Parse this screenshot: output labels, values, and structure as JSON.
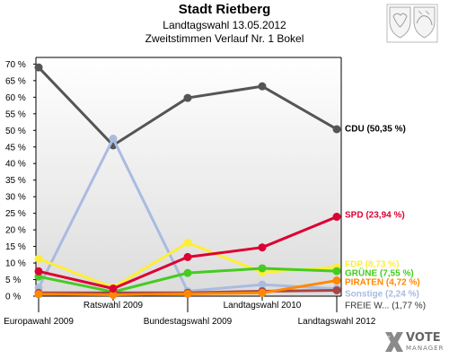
{
  "header": {
    "title": "Stadt Rietberg",
    "subtitle": "Landtagswahl 13.05.2012",
    "subtitle2": "Zweitstimmen Verlauf Nr. 1 Bokel"
  },
  "logo": {
    "vote": "VOTE",
    "manager": "MANAGER",
    "x_color": "#888888"
  },
  "chart_data": {
    "type": "line",
    "title": "Stadt Rietberg",
    "categories": [
      "Europawahl 2009",
      "Ratswahl 2009",
      "Bundestagswahl 2009",
      "Landtagswahl 2010",
      "Landtagswahl 2012"
    ],
    "ylim": [
      0,
      72
    ],
    "yticks": [
      0,
      5,
      10,
      15,
      20,
      25,
      30,
      35,
      40,
      45,
      50,
      55,
      60,
      65,
      70
    ],
    "ytick_labels": [
      "0 %",
      "5 %",
      "10 %",
      "15 %",
      "20 %",
      "25 %",
      "30 %",
      "35 %",
      "40 %",
      "45 %",
      "50 %",
      "55 %",
      "60 %",
      "65 %",
      "70 %"
    ],
    "grid": false,
    "series": [
      {
        "name": "CDU",
        "label": "CDU (50,35 %)",
        "color": "#555555",
        "label_color": "#000000",
        "values": [
          69.0,
          45.5,
          59.8,
          63.3,
          50.35
        ]
      },
      {
        "name": "Sonstige",
        "label": "Sonstige (2,24 %)",
        "color": "#aabbe0",
        "label_color": "#aabbe0",
        "values": [
          2.5,
          47.5,
          1.5,
          3.5,
          2.24
        ]
      },
      {
        "name": "FDP",
        "label": "FDP (8,73 %)",
        "color": "#ffee33",
        "label_color": "#ffee33",
        "values": [
          11.3,
          2.6,
          16.1,
          7.2,
          8.73
        ]
      },
      {
        "name": "GRÜNE",
        "label": "GRÜNE (7,55 %)",
        "color": "#44cc22",
        "label_color": "#44cc22",
        "values": [
          5.9,
          1.3,
          7.0,
          8.4,
          7.55
        ]
      },
      {
        "name": "FREIE WÄHLER",
        "label": "FREIE W... (1,77 %)",
        "color": "#aa4444",
        "label_color": "#333333",
        "values": [
          1.0,
          1.0,
          1.0,
          1.5,
          1.77
        ]
      },
      {
        "name": "PIRATEN",
        "label": "PIRATEN (4,72 %)",
        "color": "#ff8800",
        "label_color": "#ff8800",
        "values": [
          0.6,
          0.4,
          0.7,
          1.0,
          4.72
        ]
      },
      {
        "name": "SPD",
        "label": "SPD (23,94 %)",
        "color": "#dd0033",
        "label_color": "#dd0033",
        "values": [
          7.5,
          2.3,
          11.8,
          14.7,
          23.94
        ]
      }
    ]
  }
}
